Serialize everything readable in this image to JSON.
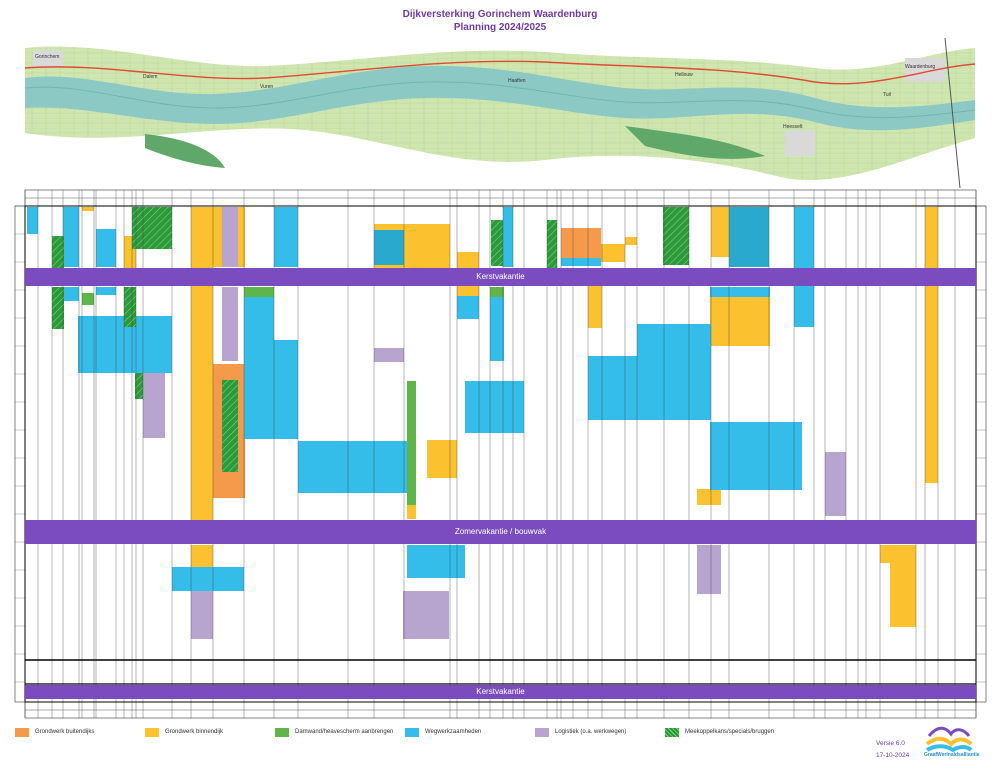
{
  "header": {
    "title": "Dijkversterking Gorinchem Waardenburg",
    "subtitle": "Planning 2024/2025"
  },
  "map": {
    "place_labels": [
      "Gorinchem",
      "Dalem",
      "Vuren",
      "Haaften",
      "Hellouw",
      "Heesselt",
      "Tuil",
      "Waardenburg"
    ]
  },
  "bands": {
    "top": "Kerstvakantie",
    "middle": "Zomervakantie / bouwvak",
    "bottom": "Kerstvakantie"
  },
  "legend": [
    {
      "label": "Grondwerk buitendijks",
      "color": "#f59a4b"
    },
    {
      "label": "Grondwerk binnendijk",
      "color": "#fbc12e"
    },
    {
      "label": "Damwand/heavescherm aanbrengen",
      "color": "#5fb54a"
    },
    {
      "label": "Wegwerkzaamheden",
      "color": "#33bde8"
    },
    {
      "label": "Logistiek (o.a. werkwegen)",
      "color": "#b7a4cf"
    },
    {
      "label": "Meekoppelkans/specials/bruggen",
      "color": "#2a9a3b"
    }
  ],
  "footer": {
    "version": "Versie 6.0",
    "date": "17-10-2024",
    "logo_text": "GraafWerinaldsalliantie"
  },
  "colors": {
    "accent": "#7a4cbf",
    "title": "#6e3aa0",
    "river": "#8cc9c4"
  }
}
